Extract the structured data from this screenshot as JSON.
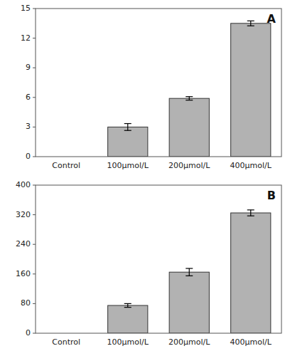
{
  "chart_data": [
    {
      "type": "bar",
      "title": "A",
      "categories": [
        "Control",
        "100μmol/L",
        "200μmol/L",
        "400μmol/L"
      ],
      "values": [
        0,
        3.0,
        5.9,
        13.5
      ],
      "errors": [
        0,
        0.35,
        0.18,
        0.25
      ],
      "color": "#b2b2b2",
      "ylim": [
        0,
        15
      ],
      "yticks": [
        0,
        3,
        6,
        9,
        12,
        15
      ],
      "grid": false
    },
    {
      "type": "bar",
      "title": "B",
      "categories": [
        "Control",
        "100μmol/L",
        "200μmol/L",
        "400μmol/L"
      ],
      "values": [
        0,
        75,
        165,
        325
      ],
      "errors": [
        0,
        5,
        10,
        8
      ],
      "color": "#b2b2b2",
      "ylim": [
        0,
        400
      ],
      "yticks": [
        0,
        80,
        160,
        240,
        320,
        400
      ],
      "grid": false
    }
  ]
}
